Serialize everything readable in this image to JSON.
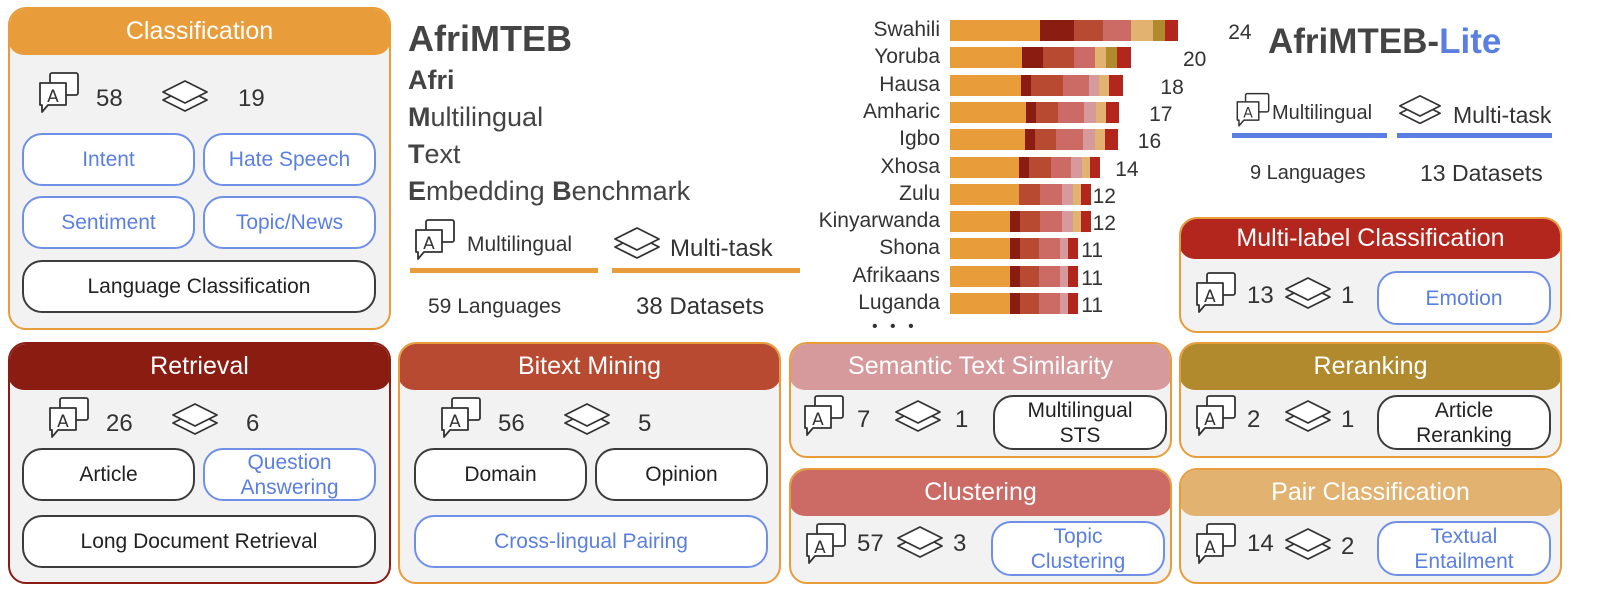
{
  "colors": {
    "classification": "#e89c3a",
    "retrieval": "#8a1c12",
    "bitext": "#b84a32",
    "sts": "#d69a9d",
    "clustering": "#cc6a66",
    "reranking": "#b08a2c",
    "pair": "#e2b270",
    "multilabel": "#b3261e",
    "blue": "#5b7fe0"
  },
  "icons": {
    "multilingual": "speech-bubble-a-icon",
    "multitask": "layers-icon"
  },
  "classification": {
    "title": "Classification",
    "langs": "58",
    "datasets": "19",
    "tasks": [
      "Intent",
      "Hate Speech",
      "Sentiment",
      "Topic/News",
      "Language Classification"
    ]
  },
  "retrieval": {
    "title": "Retrieval",
    "langs": "26",
    "datasets": "6",
    "tasks": [
      "Article",
      "Question Answering",
      "Long Document Retrieval"
    ]
  },
  "bitext": {
    "title": "Bitext Mining",
    "langs": "56",
    "datasets": "5",
    "tasks": [
      "Domain",
      "Opinion",
      "Cross-lingual Pairing"
    ]
  },
  "sts": {
    "title": "Semantic Text Similarity",
    "langs": "7",
    "datasets": "1",
    "tasks": [
      "Multilingual STS"
    ]
  },
  "clustering": {
    "title": "Clustering",
    "langs": "57",
    "datasets": "3",
    "tasks": [
      "Topic Clustering"
    ]
  },
  "reranking": {
    "title": "Reranking",
    "langs": "2",
    "datasets": "1",
    "tasks": [
      "Article Reranking"
    ]
  },
  "pair": {
    "title": "Pair Classification",
    "langs": "14",
    "datasets": "2",
    "tasks": [
      "Textual Entailment"
    ]
  },
  "multilabel": {
    "title": "Multi-label Classification",
    "langs": "13",
    "datasets": "1",
    "tasks": [
      "Emotion"
    ]
  },
  "afrimteb": {
    "title": "AfriMTEB",
    "expansion": [
      {
        "initial": "Afri",
        "rest": ""
      },
      {
        "initial": "M",
        "rest": "ultilingual"
      },
      {
        "initial": "T",
        "rest": "ext"
      },
      {
        "initial": "E",
        "rest": "mbedding ",
        "initial2": "B",
        "rest2": "enchmark"
      }
    ],
    "multilingual": "Multilingual",
    "multitask": "Multi-task",
    "languages": "59 Languages",
    "datasets": "38 Datasets"
  },
  "lite": {
    "title": "AfriMTEB-",
    "suffix": "Lite",
    "multilingual": "Multilingual",
    "multitask": "Multi-task",
    "languages": "9 Languages",
    "datasets": "13 Datasets"
  },
  "chart_data": {
    "type": "bar",
    "orientation": "horizontal-stacked",
    "categories": [
      "Swahili",
      "Yoruba",
      "Hausa",
      "Amharic",
      "Igbo",
      "Xhosa",
      "Zulu",
      "Kinyarwanda",
      "Shona",
      "Afrikaans",
      "Luganda"
    ],
    "totals": [
      24,
      20,
      18,
      17,
      16,
      14,
      12,
      12,
      11,
      11,
      11
    ],
    "series_colors": [
      "#e89c3a",
      "#8a1c12",
      "#b84a32",
      "#cc6a66",
      "#d69a9d",
      "#e2b270",
      "#b08a2c",
      "#b3261e"
    ],
    "segments": [
      [
        8,
        3,
        2.5,
        2.5,
        2,
        1,
        1.2
      ],
      [
        6.4,
        1.8,
        2.8,
        1.8,
        1,
        1,
        1.2
      ],
      [
        6.3,
        0.9,
        2.8,
        2.3,
        0.9,
        0.9,
        1.2
      ],
      [
        6.7,
        0.9,
        2,
        2.3,
        1,
        0.9,
        1.2
      ],
      [
        6.6,
        0.9,
        1.9,
        2.4,
        1,
        0.9,
        1.2
      ],
      [
        6.1,
        0.9,
        1.9,
        1.8,
        1,
        0.7,
        0.9
      ],
      [
        6.1,
        1.9,
        1.9,
        1,
        0.7,
        0.9
      ],
      [
        5.3,
        0.9,
        1.8,
        1.9,
        1,
        0.7,
        0.9
      ],
      [
        5.3,
        0.9,
        1.7,
        1.8,
        0.7,
        0.9
      ],
      [
        5.3,
        0.9,
        1.7,
        1.8,
        0.7,
        0.9
      ],
      [
        5.3,
        0.9,
        1.7,
        1.8,
        0.7,
        0.9
      ]
    ],
    "segment_colors": [
      [
        "#e89c3a",
        "#8a1c12",
        "#b84a32",
        "#cc6a66",
        "#e2b270",
        "#b08a2c",
        "#b3261e"
      ],
      [
        "#e89c3a",
        "#8a1c12",
        "#b84a32",
        "#cc6a66",
        "#e2b270",
        "#b08a2c",
        "#b3261e"
      ],
      [
        "#e89c3a",
        "#8a1c12",
        "#b84a32",
        "#cc6a66",
        "#d69a9d",
        "#e2b270",
        "#b3261e"
      ],
      [
        "#e89c3a",
        "#8a1c12",
        "#b84a32",
        "#cc6a66",
        "#d69a9d",
        "#e2b270",
        "#b3261e"
      ],
      [
        "#e89c3a",
        "#8a1c12",
        "#b84a32",
        "#cc6a66",
        "#d69a9d",
        "#e2b270",
        "#b3261e"
      ],
      [
        "#e89c3a",
        "#8a1c12",
        "#b84a32",
        "#cc6a66",
        "#d69a9d",
        "#e2b270",
        "#b3261e"
      ],
      [
        "#e89c3a",
        "#b84a32",
        "#cc6a66",
        "#d69a9d",
        "#e2b270",
        "#b3261e"
      ],
      [
        "#e89c3a",
        "#8a1c12",
        "#b84a32",
        "#cc6a66",
        "#d69a9d",
        "#e2b270",
        "#b3261e"
      ],
      [
        "#e89c3a",
        "#8a1c12",
        "#b84a32",
        "#cc6a66",
        "#d69a9d",
        "#b3261e"
      ],
      [
        "#e89c3a",
        "#8a1c12",
        "#b84a32",
        "#cc6a66",
        "#d69a9d",
        "#b3261e"
      ],
      [
        "#e89c3a",
        "#8a1c12",
        "#b84a32",
        "#cc6a66",
        "#d69a9d",
        "#b3261e"
      ]
    ],
    "ellipsis": "• • •"
  }
}
